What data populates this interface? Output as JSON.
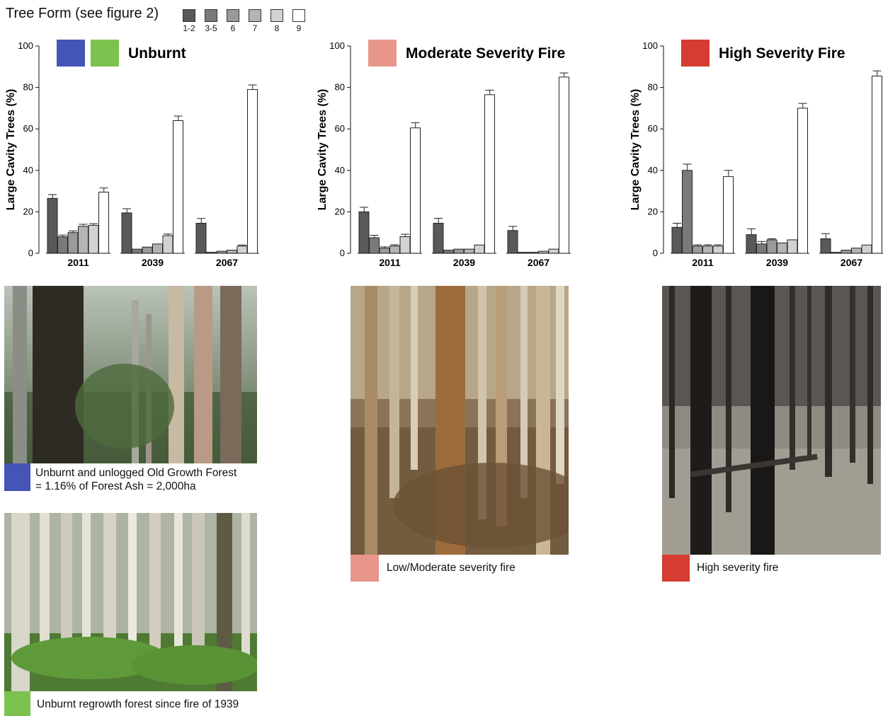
{
  "legend": {
    "title": "Tree Form (see figure 2)",
    "items": [
      {
        "label": "1-2",
        "color": "#595959"
      },
      {
        "label": "3-5",
        "color": "#7a7a7a"
      },
      {
        "label": "6",
        "color": "#9a9a9a"
      },
      {
        "label": "7",
        "color": "#b4b4b4"
      },
      {
        "label": "8",
        "color": "#d2d2d2"
      },
      {
        "label": "9",
        "color": "#ffffff"
      }
    ]
  },
  "chart_data": [
    {
      "type": "bar",
      "title": "Unburnt",
      "title_swatches": [
        "#4455b5",
        "#7cc24e"
      ],
      "ylabel": "Large Cavity Trees (%)",
      "ylim": [
        0,
        100
      ],
      "yticks": [
        0,
        20,
        40,
        60,
        80,
        100
      ],
      "categories": [
        "2011",
        "2039",
        "2067"
      ],
      "series": [
        {
          "name": "1-2",
          "values": [
            26.5,
            19.5,
            14.5
          ],
          "errors": [
            1.8,
            2.0,
            2.3
          ]
        },
        {
          "name": "3-5",
          "values": [
            8,
            2,
            0.5
          ],
          "errors": [
            0.8,
            0,
            0
          ]
        },
        {
          "name": "6",
          "values": [
            10,
            3,
            1
          ],
          "errors": [
            0.8,
            0,
            0
          ]
        },
        {
          "name": "7",
          "values": [
            13,
            4.5,
            1.5
          ],
          "errors": [
            1.0,
            0,
            0
          ]
        },
        {
          "name": "8",
          "values": [
            13.5,
            8.5,
            3.5
          ],
          "errors": [
            0.8,
            0.8,
            0.5
          ]
        },
        {
          "name": "9",
          "values": [
            29.5,
            64,
            79
          ],
          "errors": [
            2.0,
            2.2,
            2.2
          ]
        }
      ]
    },
    {
      "type": "bar",
      "title": "Moderate Severity Fire",
      "title_swatches": [
        "#e8968a"
      ],
      "ylabel": "Large Cavity Trees (%)",
      "ylim": [
        0,
        100
      ],
      "yticks": [
        0,
        20,
        40,
        60,
        80,
        100
      ],
      "categories": [
        "2011",
        "2039",
        "2067"
      ],
      "series": [
        {
          "name": "1-2",
          "values": [
            20,
            14.5,
            11
          ],
          "errors": [
            2.2,
            2.4,
            2.0
          ]
        },
        {
          "name": "3-5",
          "values": [
            7.5,
            1.5,
            0.5
          ],
          "errors": [
            1.2,
            0,
            0
          ]
        },
        {
          "name": "6",
          "values": [
            2.5,
            2,
            0.5
          ],
          "errors": [
            0.6,
            0,
            0
          ]
        },
        {
          "name": "7",
          "values": [
            3.5,
            2,
            1
          ],
          "errors": [
            0.6,
            0,
            0
          ]
        },
        {
          "name": "8",
          "values": [
            8,
            4,
            2
          ],
          "errors": [
            1.2,
            0,
            0
          ]
        },
        {
          "name": "9",
          "values": [
            60.5,
            76.5,
            85
          ],
          "errors": [
            2.5,
            2.2,
            2.0
          ]
        }
      ]
    },
    {
      "type": "bar",
      "title": "High Severity Fire",
      "title_swatches": [
        "#d63c31"
      ],
      "ylabel": "Large Cavity Trees (%)",
      "ylim": [
        0,
        100
      ],
      "yticks": [
        0,
        20,
        40,
        60,
        80,
        100
      ],
      "categories": [
        "2011",
        "2039",
        "2067"
      ],
      "series": [
        {
          "name": "1-2",
          "values": [
            12.5,
            9,
            7
          ],
          "errors": [
            2.0,
            2.8,
            2.5
          ]
        },
        {
          "name": "3-5",
          "values": [
            40,
            4.5,
            0.5
          ],
          "errors": [
            3.0,
            1.2,
            0
          ]
        },
        {
          "name": "6",
          "values": [
            3.5,
            6.5,
            1.5
          ],
          "errors": [
            0.6,
            0.5,
            0
          ]
        },
        {
          "name": "7",
          "values": [
            3.5,
            5,
            2.5
          ],
          "errors": [
            0.6,
            0,
            0
          ]
        },
        {
          "name": "8",
          "values": [
            3.5,
            6.5,
            4
          ],
          "errors": [
            0.6,
            0,
            0
          ]
        },
        {
          "name": "9",
          "values": [
            37,
            70,
            85.5
          ],
          "errors": [
            3.0,
            2.3,
            2.5
          ]
        }
      ]
    }
  ],
  "photos": [
    {
      "caption_line1": "Unburnt and unlogged Old Growth Forest",
      "caption_line2": "= 1.16% of Forest Ash = 2,000ha",
      "swatch_color": "#4455b5"
    },
    {
      "caption_line1": "Unburnt regrowth forest since fire of 1939",
      "swatch_color": "#7cc24e"
    },
    {
      "caption_line1": "Low/Moderate severity fire",
      "swatch_color": "#e8968a"
    },
    {
      "caption_line1": "High severity fire",
      "swatch_color": "#d63c31"
    }
  ]
}
